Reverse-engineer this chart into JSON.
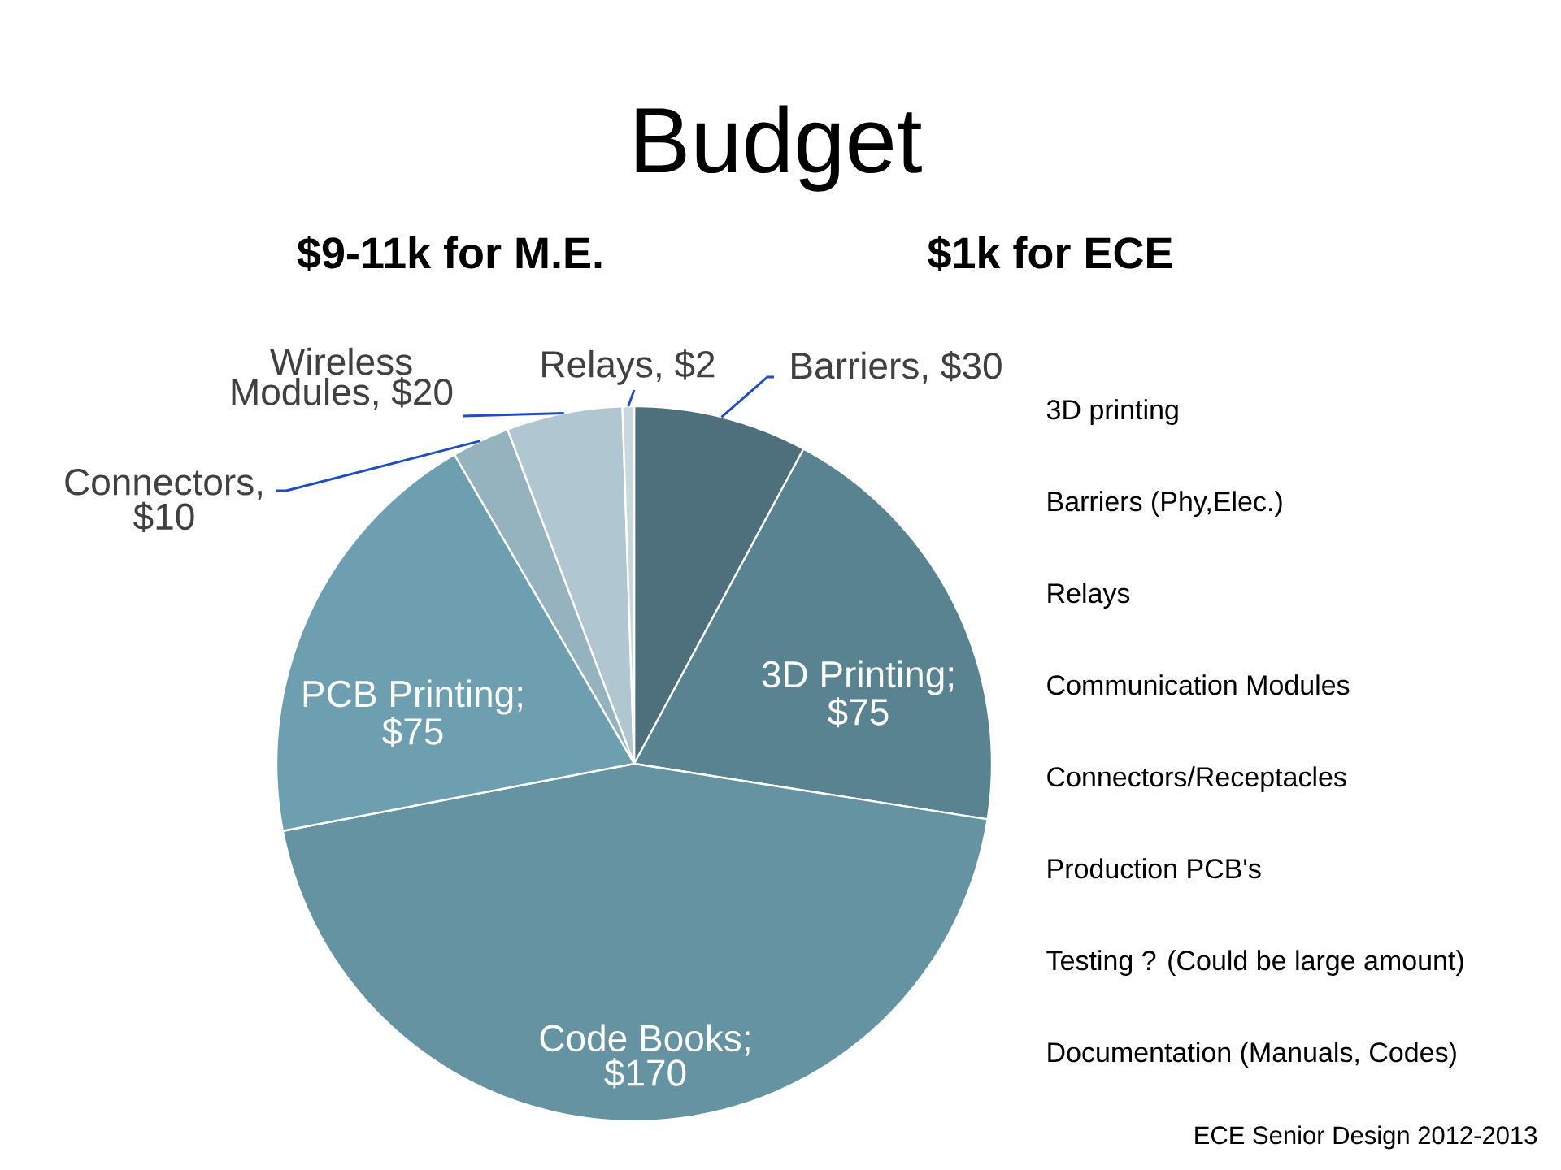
{
  "chart_data": {
    "type": "pie",
    "title": "Budget",
    "subtitle": "$9-11k for M.E.",
    "categories": [
      "Barriers, $30",
      "3D Printing; $75",
      "Code Books; $170",
      "PCB Printing; $75",
      "Connectors, $10",
      "Wireless Modules, $20",
      "Relays, $2"
    ],
    "values": [
      30,
      75,
      170,
      75,
      10,
      20,
      2
    ],
    "colors": [
      "#4e6f7c",
      "#5a8391",
      "#6593a2",
      "#6d9fb0",
      "#95b3bf",
      "#b0c6d0",
      "#c8d8de"
    ],
    "annotations": [
      "$1k for ECE",
      "3D printing",
      "Barriers (Phy,Elec.)",
      "Relays",
      "Communication Modules",
      "Connectors/Receptacles",
      "Production PCB's",
      "Testing ? (Could be large amount)",
      "Documentation (Manuals, Codes)",
      "ECE Senior Design 2012-2013"
    ]
  }
}
